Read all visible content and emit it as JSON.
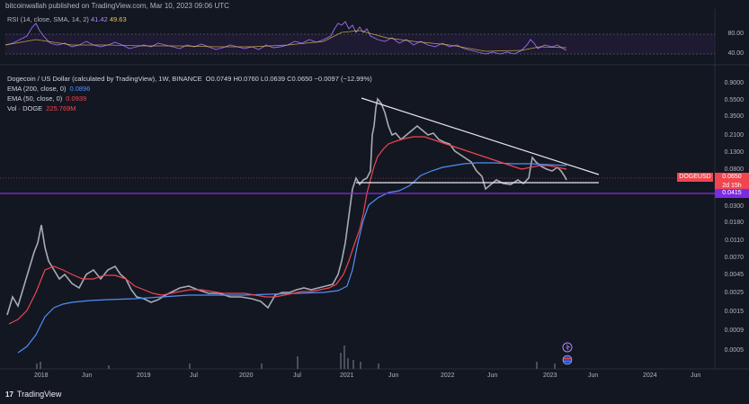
{
  "header": {
    "publisher_text": "bitcoinwallah published on TradingView.com, Mar 10, 2023 09:06 UTC"
  },
  "rsi": {
    "label": "RSI (14, close, SMA, 14, 2)",
    "value1": "41.42",
    "value2": "49.63",
    "levels": [
      "80.00",
      "40.00"
    ]
  },
  "chart": {
    "symbol_line": "Dogecoin / US Dollar (calculated by TradingView), 1W, BINANCE",
    "ohlc": "O0.0749 H0.0760 L0.0639 C0.0650 −0.0097 (−12.99%)",
    "ema200_label": "EMA (200, close, 0)",
    "ema200_value": "0.0896",
    "ema50_label": "EMA (50, close, 0)",
    "ema50_value": "0.0939",
    "vol_label": "Vol · DOGE",
    "vol_value": "225.769M",
    "price_ticks": [
      "0.9000",
      "0.5500",
      "0.3500",
      "0.2100",
      "0.1300",
      "0.0800",
      "0.0500",
      "0.0300",
      "0.0180",
      "0.0110",
      "0.0070",
      "0.0045",
      "0.0025",
      "0.0015",
      "0.0009",
      "0.0005"
    ],
    "time_ticks": [
      "2018",
      "Jun",
      "2019",
      "Jul",
      "2020",
      "Jul",
      "2021",
      "Jun",
      "2022",
      "Jun",
      "2023",
      "Jun",
      "2024",
      "Jun"
    ],
    "tag_symbol": "DOGEUSD",
    "tag_price": "0.0650",
    "tag_countdown": "2d 15h",
    "tag_support": "0.0415",
    "colors": {
      "background": "#131722",
      "up": "#d1d4dc",
      "down": "#787b86",
      "ema200": "#4f8ff7",
      "ema50": "#f0454f",
      "rsi": "#9c6ff2",
      "support_line": "#8b2be2"
    }
  },
  "chart_data": {
    "type": "line",
    "title": "Dogecoin / US Dollar (calculated by TradingView), 1W, BINANCE",
    "y_scale": "log",
    "ylim": [
      0.0004,
      1.1
    ],
    "series": [
      {
        "name": "EMA (200, close, 0)",
        "x": [
          "2018",
          "2019",
          "2020",
          "2021",
          "2021-07",
          "2022",
          "2022-07",
          "2023",
          "2023-03"
        ],
        "values": [
          0.0005,
          0.0022,
          0.0023,
          0.0028,
          0.05,
          0.1,
          0.1,
          0.095,
          0.0896
        ]
      },
      {
        "name": "EMA (50, close, 0)",
        "x": [
          "2018",
          "2019",
          "2020",
          "2021",
          "2021-07",
          "2022",
          "2022-07",
          "2023",
          "2023-03"
        ],
        "values": [
          0.0012,
          0.004,
          0.0024,
          0.003,
          0.25,
          0.16,
          0.09,
          0.09,
          0.0939
        ]
      }
    ],
    "annotations": [
      {
        "type": "descending-trendline",
        "from": {
          "x": "2021-05",
          "y": 0.66
        },
        "to": {
          "x": "2023-05",
          "y": 0.07
        }
      },
      {
        "type": "horizontal-support",
        "y": 0.056
      },
      {
        "type": "horizontal-line",
        "y": 0.0415
      }
    ]
  },
  "footer": {
    "brand": "TradingView",
    "logo_mark": "17"
  }
}
